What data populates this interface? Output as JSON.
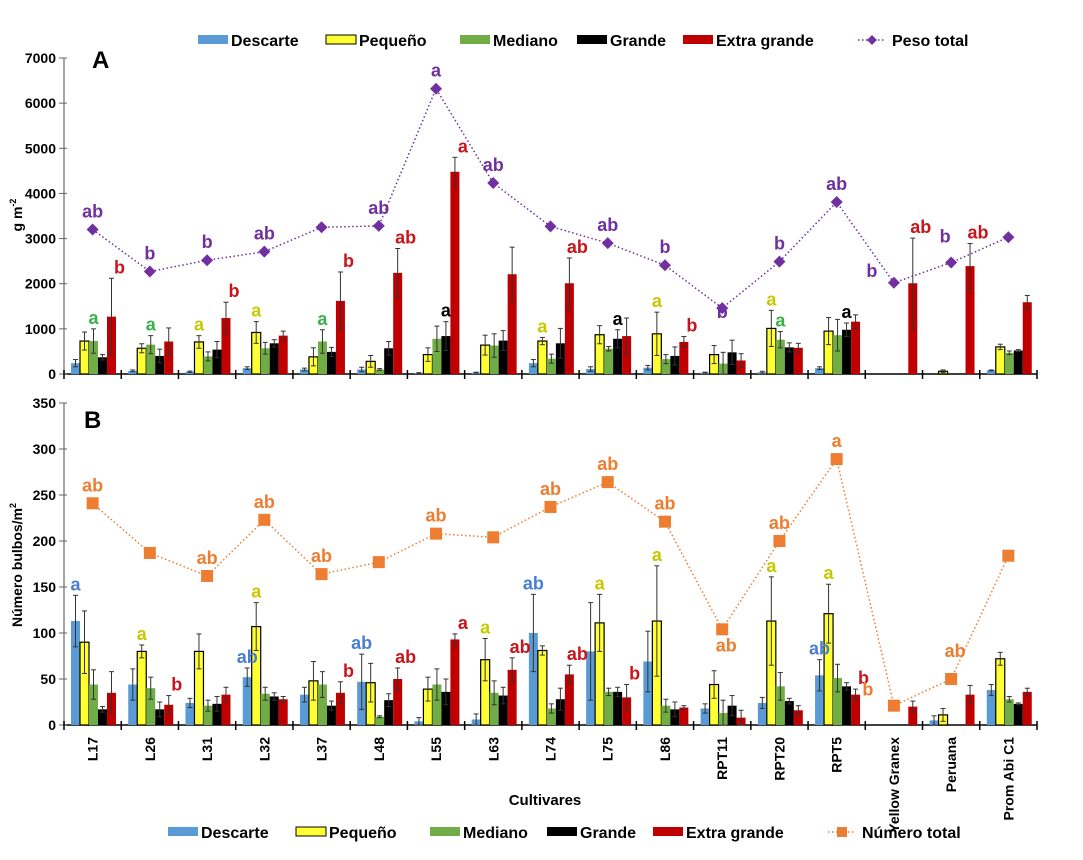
{
  "colors": {
    "Descarte": "#5b9bd5",
    "Pequeño": "#ffff33",
    "Mediano": "#70ad47",
    "Grande": "#000000",
    "Extra grande": "#c00000",
    "peso_total": "#7030a0",
    "numero_total": "#ed7d31",
    "letters": [
      "#4a7fd0",
      "#c8c800",
      "#3cb04a",
      "#000000",
      "#c8151b"
    ]
  },
  "chart_data": [
    {
      "type": "bar",
      "panel": "A",
      "title": "",
      "xlabel": "",
      "ylabel": "g m-2",
      "ylabel_main": "g m",
      "ylabel_sup": "-2",
      "ylim": [
        0,
        7000
      ],
      "yticks": [
        0,
        1000,
        2000,
        3000,
        4000,
        5000,
        6000,
        7000
      ],
      "legend": [
        "Descarte",
        "Pequeño",
        "Mediano",
        "Grande",
        "Extra grande",
        "Peso total"
      ],
      "legend_placement": "top",
      "categories": [
        "L17",
        "L26",
        "L31",
        "L32",
        "L37",
        "L48",
        "L55",
        "L63",
        "L74",
        "L75",
        "L86",
        "RPT11",
        "RPT20",
        "RPT5",
        "Yellow Granex",
        "Peruana",
        "Prom Abi C1"
      ],
      "series": [
        {
          "name": "Descarte",
          "values": [
            240,
            70,
            50,
            130,
            100,
            100,
            20,
            30,
            240,
            110,
            140,
            30,
            40,
            130,
            0,
            0,
            80
          ],
          "errors": [
            80,
            20,
            15,
            30,
            30,
            50,
            10,
            10,
            80,
            50,
            50,
            10,
            20,
            30,
            0,
            0,
            10
          ]
        },
        {
          "name": "Pequeño",
          "values": [
            730,
            570,
            710,
            920,
            380,
            280,
            430,
            640,
            730,
            870,
            890,
            430,
            1010,
            950,
            0,
            60,
            600
          ],
          "errors": [
            200,
            100,
            140,
            240,
            200,
            130,
            150,
            220,
            80,
            200,
            480,
            200,
            400,
            300,
            0,
            30,
            60
          ]
        },
        {
          "name": "Mediano",
          "values": [
            730,
            650,
            390,
            570,
            720,
            100,
            780,
            630,
            340,
            560,
            330,
            230,
            760,
            860,
            0,
            0,
            470
          ],
          "errors": [
            270,
            200,
            100,
            130,
            260,
            20,
            280,
            260,
            100,
            50,
            100,
            250,
            180,
            350,
            0,
            0,
            40
          ]
        },
        {
          "name": "Grande",
          "values": [
            370,
            400,
            540,
            680,
            490,
            570,
            840,
            740,
            680,
            780,
            400,
            480,
            590,
            980,
            0,
            0,
            520
          ],
          "errors": [
            60,
            150,
            180,
            80,
            100,
            150,
            320,
            220,
            330,
            200,
            200,
            270,
            100,
            150,
            0,
            0,
            20
          ]
        },
        {
          "name": "Extra grande",
          "values": [
            1270,
            720,
            1240,
            850,
            1620,
            2240,
            4480,
            2210,
            2010,
            840,
            710,
            300,
            580,
            1160,
            2010,
            2390,
            1590
          ],
          "errors": [
            850,
            300,
            350,
            100,
            640,
            540,
            320,
            600,
            560,
            400,
            120,
            150,
            100,
            150,
            1000,
            500,
            150
          ]
        }
      ],
      "total": {
        "name": "Peso total",
        "values": [
          3200,
          2270,
          2520,
          2710,
          3250,
          3280,
          6320,
          4230,
          3270,
          2900,
          2410,
          1460,
          2490,
          3810,
          2020,
          2470,
          3030
        ]
      },
      "annotations": [
        {
          "category": "L17",
          "series": 2,
          "text": "a"
        },
        {
          "category": "L17",
          "series": 4,
          "text": "b"
        },
        {
          "category": "L17",
          "series": "total",
          "text": "ab"
        },
        {
          "category": "L26",
          "series": 2,
          "text": "a"
        },
        {
          "category": "L26",
          "series": "total",
          "text": "b"
        },
        {
          "category": "L31",
          "series": 1,
          "text": "a"
        },
        {
          "category": "L31",
          "series": 4,
          "text": "b"
        },
        {
          "category": "L31",
          "series": "total",
          "text": "b"
        },
        {
          "category": "L32",
          "series": 1,
          "text": "a"
        },
        {
          "category": "L32",
          "series": "total",
          "text": "ab"
        },
        {
          "category": "L37",
          "series": 2,
          "text": "a"
        },
        {
          "category": "L37",
          "series": 4,
          "text": "b"
        },
        {
          "category": "L48",
          "series": 4,
          "text": "ab"
        },
        {
          "category": "L48",
          "series": "total",
          "text": "ab"
        },
        {
          "category": "L55",
          "series": 3,
          "text": "a"
        },
        {
          "category": "L55",
          "series": 4,
          "text": "a"
        },
        {
          "category": "L55",
          "series": "total",
          "text": "a"
        },
        {
          "category": "L63",
          "series": "total",
          "text": "ab"
        },
        {
          "category": "L74",
          "series": 1,
          "text": "a"
        },
        {
          "category": "L74",
          "series": 4,
          "text": "ab"
        },
        {
          "category": "L75",
          "series": 3,
          "text": "a"
        },
        {
          "category": "L75",
          "series": "total",
          "text": "ab"
        },
        {
          "category": "L86",
          "series": 1,
          "text": "a"
        },
        {
          "category": "L86",
          "series": 4,
          "text": "b"
        },
        {
          "category": "L86",
          "series": "total",
          "text": "b"
        },
        {
          "category": "RPT11",
          "series": "total",
          "text": "b"
        },
        {
          "category": "RPT20",
          "series": 1,
          "text": "a"
        },
        {
          "category": "RPT20",
          "series": 2,
          "text": "a"
        },
        {
          "category": "RPT20",
          "series": "total",
          "text": "b"
        },
        {
          "category": "RPT5",
          "series": 3,
          "text": "a"
        },
        {
          "category": "RPT5",
          "series": "total",
          "text": "ab"
        },
        {
          "category": "Yellow Granex",
          "series": 4,
          "text": "ab"
        },
        {
          "category": "Yellow Granex",
          "series": "total",
          "text": "b"
        },
        {
          "category": "Peruana",
          "series": 4,
          "text": "ab"
        },
        {
          "category": "Peruana",
          "series": "total",
          "text": "b"
        }
      ]
    },
    {
      "type": "bar",
      "panel": "B",
      "title": "",
      "xlabel": "Cultivares",
      "ylabel": "Número bulbos/m2",
      "ylabel_main": "Número bulbos/m",
      "ylabel_sup": "2",
      "ylim": [
        0,
        350
      ],
      "yticks": [
        0,
        50,
        100,
        150,
        200,
        250,
        300,
        350
      ],
      "legend": [
        "Descarte",
        "Pequeño",
        "Mediano",
        "Grande",
        "Extra grande",
        "Número total"
      ],
      "legend_placement": "bottom",
      "categories": [
        "L17",
        "L26",
        "L31",
        "L32",
        "L37",
        "L48",
        "L55",
        "L63",
        "L74",
        "L75",
        "L86",
        "RPT11",
        "RPT20",
        "RPT5",
        "Yellow Granex",
        "Peruana",
        "Prom Abi C1"
      ],
      "series": [
        {
          "name": "Descarte",
          "values": [
            113,
            44,
            24,
            52,
            33,
            47,
            4,
            6,
            100,
            80,
            69,
            18,
            24,
            54,
            0,
            5,
            38
          ],
          "errors": [
            28,
            17,
            5,
            10,
            8,
            30,
            4,
            6,
            42,
            53,
            33,
            5,
            6,
            17,
            0,
            5,
            6
          ]
        },
        {
          "name": "Pequeño",
          "values": [
            90,
            80,
            80,
            107,
            48,
            46,
            39,
            71,
            81,
            111,
            113,
            44,
            113,
            121,
            0,
            11,
            72
          ],
          "errors": [
            34,
            7,
            19,
            26,
            21,
            21,
            13,
            23,
            5,
            31,
            60,
            15,
            48,
            32,
            0,
            7,
            7
          ]
        },
        {
          "name": "Mediano",
          "values": [
            44,
            40,
            21,
            34,
            44,
            9,
            44,
            35,
            18,
            36,
            21,
            13,
            42,
            51,
            0,
            0,
            28
          ],
          "errors": [
            16,
            12,
            6,
            7,
            14,
            1,
            17,
            13,
            5,
            4,
            7,
            14,
            15,
            15,
            0,
            0,
            3
          ]
        },
        {
          "name": "Grande",
          "values": [
            17,
            17,
            23,
            31,
            21,
            27,
            36,
            32,
            28,
            36,
            17,
            21,
            26,
            42,
            0,
            0,
            23
          ],
          "errors": [
            3,
            8,
            8,
            4,
            5,
            7,
            14,
            9,
            12,
            5,
            8,
            11,
            3,
            4,
            0,
            0,
            1
          ]
        },
        {
          "name": "Extra grande",
          "values": [
            35,
            22,
            33,
            28,
            35,
            50,
            93,
            60,
            55,
            30,
            19,
            8,
            16,
            33,
            20,
            33,
            36
          ],
          "errors": [
            23,
            10,
            8,
            3,
            12,
            12,
            6,
            13,
            10,
            14,
            2,
            8,
            5,
            6,
            6,
            10,
            4
          ]
        }
      ],
      "total": {
        "name": "Número total",
        "values": [
          241,
          187,
          162,
          223,
          164,
          177,
          208,
          204,
          237,
          264,
          221,
          104,
          200,
          289,
          21,
          50,
          184
        ]
      },
      "annotations": [
        {
          "category": "L17",
          "series": 0,
          "text": "a"
        },
        {
          "category": "L17",
          "series": "total",
          "text": "ab"
        },
        {
          "category": "L26",
          "series": 1,
          "text": "a"
        },
        {
          "category": "L26",
          "series": 4,
          "text": "b"
        },
        {
          "category": "L31",
          "series": "total",
          "text": "ab"
        },
        {
          "category": "L32",
          "series": 0,
          "text": "ab"
        },
        {
          "category": "L32",
          "series": 1,
          "text": "a"
        },
        {
          "category": "L32",
          "series": "total",
          "text": "ab"
        },
        {
          "category": "L37",
          "series": 4,
          "text": "b"
        },
        {
          "category": "L37",
          "series": "total",
          "text": "ab"
        },
        {
          "category": "L48",
          "series": 0,
          "text": "ab"
        },
        {
          "category": "L48",
          "series": 4,
          "text": "ab"
        },
        {
          "category": "L55",
          "series": 4,
          "text": "a"
        },
        {
          "category": "L55",
          "series": "total",
          "text": "ab"
        },
        {
          "category": "L63",
          "series": 1,
          "text": "a"
        },
        {
          "category": "L63",
          "series": 4,
          "text": "ab"
        },
        {
          "category": "L74",
          "series": 0,
          "text": "ab"
        },
        {
          "category": "L74",
          "series": 4,
          "text": "ab"
        },
        {
          "category": "L74",
          "series": "total",
          "text": "ab"
        },
        {
          "category": "L75",
          "series": 1,
          "text": "a"
        },
        {
          "category": "L75",
          "series": 4,
          "text": "b"
        },
        {
          "category": "L75",
          "series": "total",
          "text": "ab"
        },
        {
          "category": "L86",
          "series": 1,
          "text": "a"
        },
        {
          "category": "L86",
          "series": "total",
          "text": "ab"
        },
        {
          "category": "RPT11",
          "series": "total",
          "text": "ab"
        },
        {
          "category": "RPT20",
          "series": 1,
          "text": "a"
        },
        {
          "category": "RPT20",
          "series": "total",
          "text": "ab"
        },
        {
          "category": "RPT5",
          "series": 0,
          "text": "ab"
        },
        {
          "category": "RPT5",
          "series": 1,
          "text": "a"
        },
        {
          "category": "RPT5",
          "series": 4,
          "text": "b"
        },
        {
          "category": "RPT5",
          "series": "total",
          "text": "a"
        },
        {
          "category": "Yellow Granex",
          "series": "total",
          "text": "b"
        },
        {
          "category": "Peruana",
          "series": "total",
          "text": "ab"
        }
      ]
    }
  ]
}
